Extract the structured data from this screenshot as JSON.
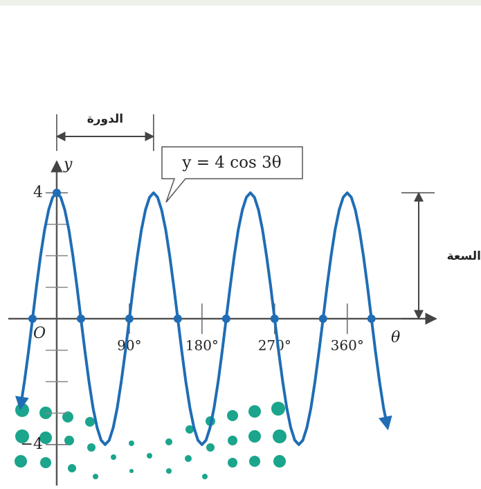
{
  "chart_data": {
    "type": "line",
    "equation": "y = 4 cos 3θ",
    "x_label": "θ",
    "y_label": "y",
    "origin_label": "O",
    "x": [
      -45,
      -40,
      -35,
      -30,
      -25,
      -20,
      -15,
      -10,
      -5,
      0,
      5,
      10,
      15,
      20,
      25,
      30,
      35,
      40,
      45,
      50,
      55,
      60,
      65,
      70,
      75,
      80,
      85,
      90,
      95,
      100,
      105,
      110,
      115,
      120,
      125,
      130,
      135,
      140,
      145,
      150,
      155,
      160,
      165,
      170,
      175,
      180,
      185,
      190,
      195,
      200,
      205,
      210,
      215,
      220,
      225,
      230,
      235,
      240,
      245,
      250,
      255,
      260,
      265,
      270,
      275,
      280,
      285,
      290,
      295,
      300,
      305,
      310,
      315,
      320,
      325,
      330,
      335,
      340,
      345,
      350,
      355,
      360,
      365,
      370,
      375,
      380,
      385,
      390,
      395,
      400,
      405,
      410
    ],
    "series": [
      {
        "color": "#1f6db5",
        "values": [
          -2.83,
          -2,
          -1.04,
          0,
          1.04,
          2,
          2.83,
          3.46,
          3.86,
          4,
          3.86,
          3.46,
          2.83,
          2,
          1.04,
          0,
          -1.04,
          -2,
          -2.83,
          -3.46,
          -3.86,
          -4,
          -3.86,
          -3.46,
          -2.83,
          -2,
          -1.04,
          0,
          1.04,
          2,
          2.83,
          3.46,
          3.86,
          4,
          3.86,
          3.46,
          2.83,
          2,
          1.04,
          0,
          -1.04,
          -2,
          -2.83,
          -3.46,
          -3.86,
          -4,
          -3.86,
          -3.46,
          -2.83,
          -2,
          -1.04,
          0,
          1.04,
          2,
          2.83,
          3.46,
          3.86,
          4,
          3.86,
          3.46,
          2.83,
          2,
          1.04,
          0,
          -1.04,
          -2,
          -2.83,
          -3.46,
          -3.86,
          -4,
          -3.86,
          -3.46,
          -2.83,
          -2,
          -1.04,
          0,
          1.04,
          2,
          2.83,
          3.46,
          3.86,
          4,
          3.86,
          3.46,
          2.83,
          2,
          1.04,
          0,
          -1.04,
          -2,
          -2.83,
          -3.46
        ]
      }
    ],
    "points": {
      "x": [
        0,
        -30,
        30,
        90,
        150,
        210,
        270,
        330,
        390
      ],
      "y": [
        4,
        0,
        0,
        0,
        0,
        0,
        0,
        0,
        0
      ]
    },
    "xlim": [
      -60,
      470
    ],
    "ylim": [
      -5.3,
      5
    ],
    "xticks": [
      {
        "value": 90,
        "label": "90°"
      },
      {
        "value": 180,
        "label": "180°"
      },
      {
        "value": 270,
        "label": "270°"
      },
      {
        "value": 360,
        "label": "360°"
      }
    ],
    "yticks": [
      4,
      {
        "value": -4,
        "label": "−4"
      }
    ],
    "yminor": [
      -3,
      -2,
      -1,
      1,
      2,
      3
    ],
    "period": {
      "label": "الدورة",
      "from": 0,
      "to": 120
    },
    "amplitude": {
      "label": "السعة",
      "from": 0,
      "to": 4
    }
  }
}
